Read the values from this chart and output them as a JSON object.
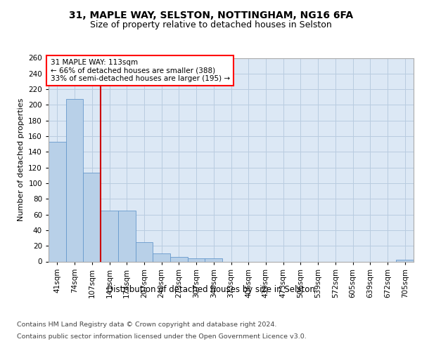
{
  "title1": "31, MAPLE WAY, SELSTON, NOTTINGHAM, NG16 6FA",
  "title2": "Size of property relative to detached houses in Selston",
  "xlabel": "Distribution of detached houses by size in Selston",
  "ylabel": "Number of detached properties",
  "footer1": "Contains HM Land Registry data © Crown copyright and database right 2024.",
  "footer2": "Contains public sector information licensed under the Open Government Licence v3.0.",
  "annotation_line1": "31 MAPLE WAY: 113sqm",
  "annotation_line2": "← 66% of detached houses are smaller (388)",
  "annotation_line3": "33% of semi-detached houses are larger (195) →",
  "bar_labels": [
    "41sqm",
    "74sqm",
    "107sqm",
    "141sqm",
    "174sqm",
    "207sqm",
    "240sqm",
    "273sqm",
    "307sqm",
    "340sqm",
    "373sqm",
    "406sqm",
    "439sqm",
    "473sqm",
    "506sqm",
    "539sqm",
    "572sqm",
    "605sqm",
    "639sqm",
    "672sqm",
    "705sqm"
  ],
  "bar_values": [
    153,
    208,
    113,
    65,
    65,
    25,
    10,
    6,
    4,
    4,
    0,
    0,
    0,
    0,
    0,
    0,
    0,
    0,
    0,
    0,
    2
  ],
  "bar_color": "#b8d0e8",
  "bar_edge_color": "#6699cc",
  "bg_color": "#dce8f5",
  "grid_color": "#b8cce0",
  "vline_x": 2.5,
  "vline_color": "#cc0000",
  "ylim": [
    0,
    260
  ],
  "yticks": [
    0,
    20,
    40,
    60,
    80,
    100,
    120,
    140,
    160,
    180,
    200,
    220,
    240,
    260
  ],
  "title1_fontsize": 10,
  "title2_fontsize": 9,
  "xlabel_fontsize": 8.5,
  "ylabel_fontsize": 8,
  "tick_fontsize": 7.5,
  "annotation_fontsize": 7.5,
  "footer_fontsize": 6.8
}
